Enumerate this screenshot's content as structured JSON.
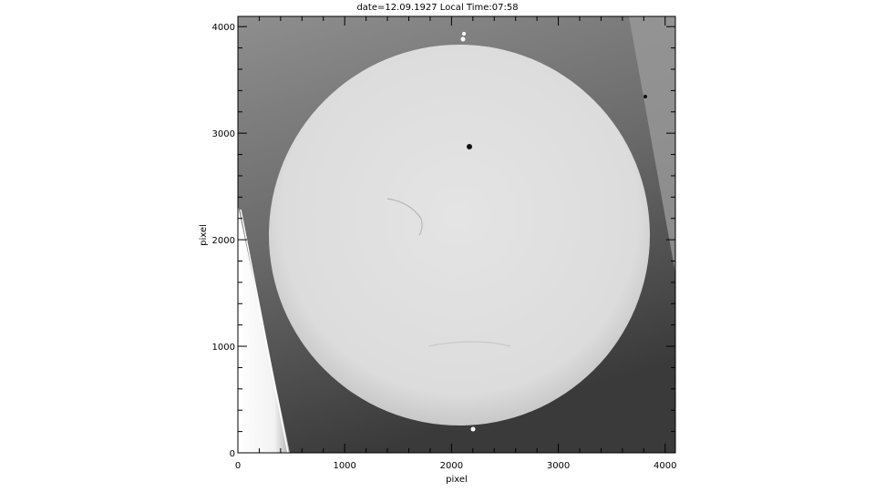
{
  "chart_data": {
    "type": "image",
    "title": "date=12.09.1927 Local Time:07:58",
    "xlabel": "pixel",
    "ylabel": "pixel",
    "xlim": [
      0,
      4096
    ],
    "ylim": [
      0,
      4096
    ],
    "xticks": [
      0,
      1000,
      2000,
      3000,
      4000
    ],
    "yticks": [
      0,
      1000,
      2000,
      3000,
      4000
    ],
    "xtick_labels": [
      "0",
      "1000",
      "2000",
      "3000",
      "4000"
    ],
    "ytick_labels": [
      "0",
      "1000",
      "2000",
      "3000",
      "4000"
    ],
    "colormap": "grayscale",
    "grid": false
  }
}
